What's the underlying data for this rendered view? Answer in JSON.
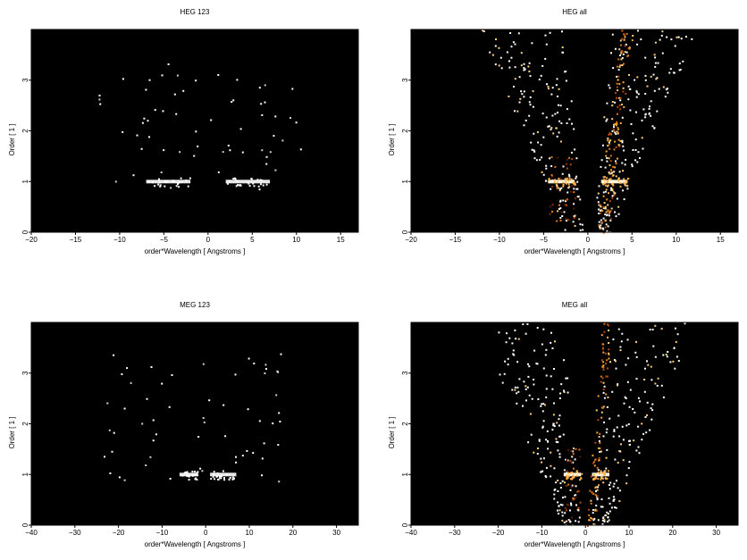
{
  "chart_data": [
    {
      "type": "heatmap",
      "title": "HEG 123",
      "xlabel": "order*Wavelength [ Angstroms ]",
      "ylabel": "Order [ 1 ]",
      "xlim": [
        -20,
        17
      ],
      "ylim": [
        0,
        4
      ],
      "xticks": [
        -20,
        -15,
        -10,
        -5,
        0,
        5,
        10,
        15
      ],
      "yticks": [
        0,
        1,
        2,
        3
      ],
      "background": "#000000",
      "features": [
        {
          "x_range": [
            -12.5,
            10.5
          ],
          "y_range": [
            0.85,
            3.35
          ],
          "intensity": 0.15,
          "style": "sparse"
        },
        {
          "x_range": [
            -7,
            -2
          ],
          "y_range": [
            0.95,
            1.05
          ],
          "intensity": 0.8,
          "style": "band"
        },
        {
          "x_range": [
            2,
            7
          ],
          "y_range": [
            0.95,
            1.05
          ],
          "intensity": 0.8,
          "style": "band"
        }
      ]
    },
    {
      "type": "heatmap",
      "title": "HEG all",
      "xlabel": "order*Wavelength [ Angstroms ]",
      "ylabel": "Order [ 1 ]",
      "xlim": [
        -20,
        17
      ],
      "ylim": [
        0,
        4
      ],
      "xticks": [
        -20,
        -15,
        -10,
        -5,
        0,
        5,
        10,
        15
      ],
      "yticks": [
        0,
        1,
        2,
        3
      ],
      "background": "#000000",
      "features": [
        {
          "x_range": [
            -13,
            10
          ],
          "y_range": [
            0,
            4
          ],
          "intensity": 0.3,
          "style": "scatter"
        },
        {
          "x_range": [
            -4.5,
            -1.5
          ],
          "y_range": [
            0.2,
            1.5
          ],
          "intensity": 0.7,
          "style": "warm"
        },
        {
          "x_range": [
            1.5,
            4.5
          ],
          "y_range": [
            0,
            4
          ],
          "intensity": 0.8,
          "style": "wedge"
        },
        {
          "x_range": [
            -4.5,
            -1.5
          ],
          "y_range": [
            0.95,
            1.05
          ],
          "intensity": 1.0,
          "style": "band"
        },
        {
          "x_range": [
            1.5,
            4.5
          ],
          "y_range": [
            0.95,
            1.05
          ],
          "intensity": 1.0,
          "style": "band"
        }
      ]
    },
    {
      "type": "heatmap",
      "title": "MEG 123",
      "xlabel": "order*Wavelength [ Angstroms ]",
      "ylabel": "Order [ 1 ]",
      "xlim": [
        -40,
        35
      ],
      "ylim": [
        0,
        4
      ],
      "xticks": [
        -40,
        -30,
        -20,
        -10,
        0,
        10,
        20,
        30
      ],
      "yticks": [
        0,
        1,
        2,
        3
      ],
      "background": "#000000",
      "features": [
        {
          "x_range": [
            -24,
            18
          ],
          "y_range": [
            0.85,
            3.4
          ],
          "intensity": 0.15,
          "style": "sparse"
        },
        {
          "x_range": [
            -6,
            -2
          ],
          "y_range": [
            0.95,
            1.05
          ],
          "intensity": 0.8,
          "style": "band"
        },
        {
          "x_range": [
            1,
            7
          ],
          "y_range": [
            0.95,
            1.05
          ],
          "intensity": 0.8,
          "style": "band"
        }
      ]
    },
    {
      "type": "heatmap",
      "title": "MEG all",
      "xlabel": "order*Wavelength [ Angstroms ]",
      "ylabel": "Order [ 1 ]",
      "xlim": [
        -40,
        35
      ],
      "ylim": [
        0,
        4
      ],
      "xticks": [
        -40,
        -30,
        -20,
        -10,
        0,
        10,
        20,
        30
      ],
      "yticks": [
        0,
        1,
        2,
        3
      ],
      "background": "#000000",
      "features": [
        {
          "x_range": [
            -27,
            20
          ],
          "y_range": [
            0,
            4
          ],
          "intensity": 0.3,
          "style": "scatter"
        },
        {
          "x_range": [
            -5,
            -1
          ],
          "y_range": [
            0,
            1.6
          ],
          "intensity": 0.7,
          "style": "warm"
        },
        {
          "x_range": [
            1,
            5
          ],
          "y_range": [
            0,
            4
          ],
          "intensity": 0.8,
          "style": "wedge"
        },
        {
          "x_range": [
            -5,
            -1
          ],
          "y_range": [
            0.95,
            1.05
          ],
          "intensity": 1.0,
          "style": "band"
        },
        {
          "x_range": [
            1.5,
            5.5
          ],
          "y_range": [
            0.95,
            1.05
          ],
          "intensity": 1.0,
          "style": "band"
        }
      ]
    }
  ]
}
